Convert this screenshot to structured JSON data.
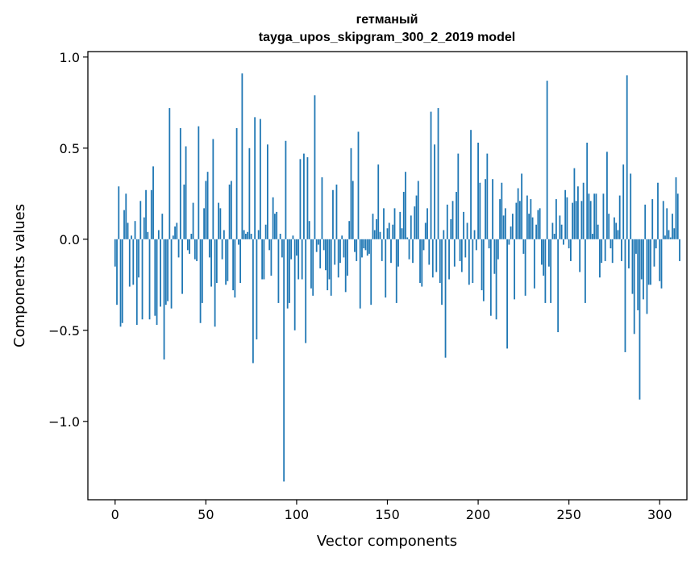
{
  "chart_data": {
    "type": "bar",
    "title": "гетманый",
    "subtitle": "tayga_upos_skipgram_300_2_2019 model",
    "xlabel": "Vector components",
    "ylabel": "Components values",
    "xlim": [
      -15,
      315
    ],
    "ylim": [
      -1.43,
      1.03
    ],
    "xticks": [
      0,
      50,
      100,
      150,
      200,
      250,
      300
    ],
    "xtick_labels": [
      "0",
      "50",
      "100",
      "150",
      "200",
      "250",
      "300"
    ],
    "yticks": [
      -1.0,
      -0.5,
      0.0,
      0.5,
      1.0
    ],
    "ytick_labels": [
      "−1.0",
      "−0.5",
      "0.0",
      "0.5",
      "1.0"
    ],
    "bar_color": "#1f77b4",
    "grid": false,
    "values": [
      -0.15,
      -0.36,
      0.29,
      -0.48,
      -0.46,
      0.16,
      0.25,
      0.09,
      -0.26,
      0.02,
      -0.25,
      0.1,
      -0.47,
      -0.21,
      0.21,
      -0.44,
      0.12,
      0.27,
      0.04,
      -0.44,
      0.27,
      0.4,
      -0.42,
      -0.47,
      0.05,
      -0.37,
      0.14,
      -0.66,
      -0.36,
      -0.34,
      0.72,
      -0.38,
      0.02,
      0.07,
      0.09,
      -0.1,
      0.61,
      -0.3,
      0.3,
      0.51,
      -0.06,
      -0.08,
      0.03,
      0.2,
      -0.11,
      -0.12,
      0.62,
      -0.46,
      -0.35,
      0.17,
      0.32,
      0.37,
      -0.1,
      -0.26,
      0.55,
      -0.48,
      -0.24,
      0.2,
      0.17,
      -0.11,
      0.05,
      -0.25,
      -0.23,
      0.3,
      0.32,
      -0.28,
      -0.32,
      0.61,
      -0.03,
      -0.24,
      0.91,
      0.05,
      0.03,
      0.04,
      0.5,
      0.03,
      -0.68,
      0.67,
      -0.55,
      0.05,
      0.66,
      -0.22,
      -0.22,
      0.08,
      0.52,
      -0.06,
      -0.2,
      0.23,
      0.14,
      0.15,
      -0.35,
      0.03,
      -0.1,
      -1.33,
      0.54,
      -0.38,
      -0.35,
      -0.11,
      0.02,
      -0.5,
      -0.09,
      -0.22,
      0.44,
      -0.22,
      0.47,
      -0.57,
      0.45,
      0.1,
      -0.27,
      -0.31,
      0.79,
      -0.07,
      -0.03,
      -0.16,
      0.34,
      -0.06,
      -0.17,
      -0.28,
      -0.22,
      -0.31,
      0.27,
      -0.14,
      0.3,
      -0.21,
      -0.13,
      0.02,
      -0.1,
      -0.29,
      -0.2,
      0.1,
      0.5,
      0.32,
      -0.07,
      -0.12,
      0.59,
      -0.38,
      -0.1,
      -0.05,
      -0.06,
      -0.09,
      -0.08,
      -0.36,
      0.14,
      0.05,
      0.11,
      0.41,
      0.04,
      -0.12,
      0.17,
      -0.32,
      0.06,
      0.09,
      -0.13,
      0.08,
      0.17,
      -0.35,
      -0.15,
      0.15,
      0.06,
      0.26,
      0.37,
      0.01,
      -0.11,
      0.13,
      -0.13,
      0.18,
      0.24,
      0.32,
      -0.24,
      -0.26,
      -0.06,
      0.09,
      0.17,
      -0.14,
      0.7,
      -0.21,
      0.52,
      -0.18,
      0.72,
      -0.24,
      -0.36,
      0.05,
      -0.65,
      0.19,
      -0.22,
      0.11,
      0.21,
      -0.15,
      0.26,
      0.47,
      -0.12,
      -0.18,
      0.15,
      -0.1,
      0.09,
      -0.25,
      0.6,
      -0.24,
      0.05,
      -0.06,
      0.53,
      0.31,
      -0.28,
      -0.34,
      0.33,
      0.47,
      -0.05,
      -0.42,
      0.33,
      -0.19,
      -0.44,
      -0.11,
      0.22,
      0.31,
      0.13,
      0.17,
      -0.6,
      -0.03,
      0.07,
      0.14,
      -0.33,
      0.2,
      0.28,
      0.21,
      0.36,
      -0.08,
      -0.31,
      0.24,
      0.14,
      0.22,
      0.12,
      -0.27,
      0.08,
      0.16,
      0.17,
      -0.14,
      -0.2,
      -0.35,
      0.87,
      -0.15,
      -0.35,
      0.09,
      0.03,
      0.22,
      -0.51,
      0.13,
      0.08,
      -0.03,
      0.27,
      0.23,
      -0.05,
      -0.12,
      0.2,
      0.39,
      0.21,
      0.29,
      -0.18,
      0.21,
      0.31,
      -0.35,
      0.53,
      0.25,
      0.21,
      0.03,
      0.25,
      0.25,
      0.08,
      -0.21,
      -0.13,
      0.25,
      -0.12,
      0.48,
      0.14,
      -0.05,
      -0.13,
      0.12,
      0.09,
      0.05,
      0.24,
      -0.12,
      0.41,
      -0.62,
      0.9,
      -0.16,
      0.36,
      -0.3,
      -0.52,
      -0.08,
      -0.39,
      -0.88,
      -0.22,
      -0.33,
      0.19,
      -0.41,
      -0.25,
      -0.25,
      0.22,
      -0.15,
      -0.05,
      0.31,
      -0.23,
      -0.27,
      0.21,
      0.02,
      0.17,
      0.05,
      0.01,
      0.14,
      0.06,
      0.34,
      0.25,
      -0.12
    ],
    "tick_positions": [
      0,
      50,
      100,
      150,
      200,
      250,
      300
    ]
  }
}
